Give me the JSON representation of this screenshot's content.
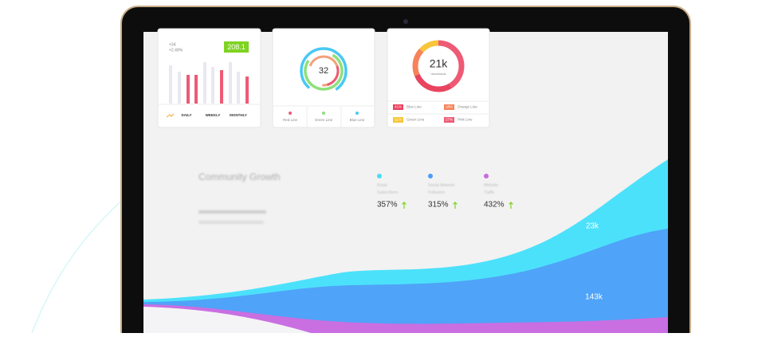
{
  "card_trend": {
    "delta": "+34",
    "change": "+2.49%",
    "value": "208.1",
    "tabs": [
      "DAILY",
      "WEEKLY",
      "MONTHLY"
    ]
  },
  "card_rings": {
    "center": "32",
    "legend": [
      "Red Line",
      "Green Line",
      "Blue Line"
    ]
  },
  "card_downloads": {
    "center": "21k",
    "caption": "downloads",
    "legend": [
      {
        "pct": "41%",
        "label": "Blue Line"
      },
      {
        "pct": "18%",
        "label": "Orange Line"
      },
      {
        "pct": "11%",
        "label": "Green Line"
      },
      {
        "pct": "27%",
        "label": "Pink Line"
      }
    ]
  },
  "community": {
    "title": "Community Growth",
    "stats": [
      {
        "label": "Email Subscribers",
        "value": "357%"
      },
      {
        "label": "Social Network Followers",
        "value": "315%"
      },
      {
        "label": "Website Traffic",
        "value": "432%"
      }
    ],
    "area_labels": [
      "23k",
      "143k"
    ]
  }
}
